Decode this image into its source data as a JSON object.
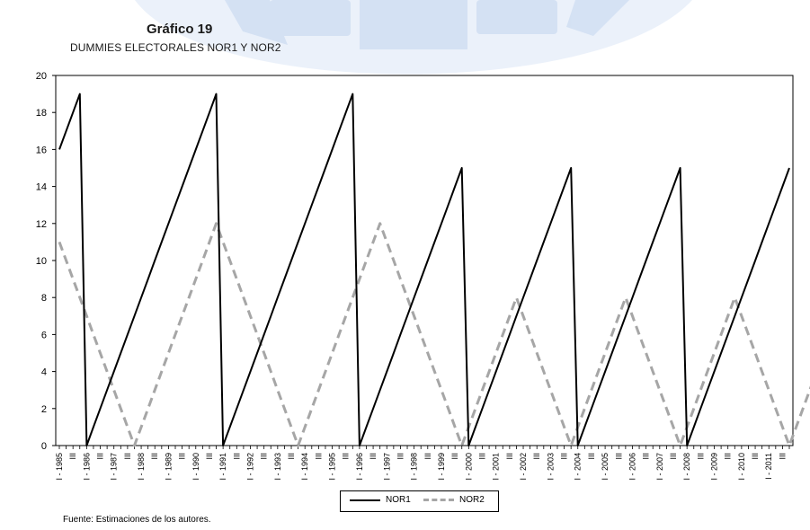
{
  "title": "Gráfico 19",
  "subtitle": "DUMMIES  ELECTORALES NOR1 Y NOR2",
  "footer": "Fuente: Estimaciones de los autores.",
  "colors": {
    "nor1": "#000000",
    "nor2": "#a6a6a6",
    "watermark": "#dbe6f5"
  },
  "chart_data": {
    "type": "line",
    "title": "Gráfico 19",
    "subtitle": "DUMMIES  ELECTORALES NOR1 Y NOR2",
    "ylim": [
      0,
      20
    ],
    "yticks": [
      0,
      2,
      4,
      6,
      8,
      10,
      12,
      14,
      16,
      18,
      20
    ],
    "x_start_year": 1985,
    "x_end_year": 2011,
    "quarters_per_year": 4,
    "x_tick_labels": [
      "I - 1985",
      "III",
      "I - 1986",
      "III",
      "I - 1987",
      "III",
      "I - 1988",
      "III",
      "I - 1989",
      "III",
      "I - 1990",
      "III",
      "I - 1991",
      "III",
      "I - 1992",
      "III",
      "I - 1993",
      "III",
      "I - 1994",
      "III",
      "I - 1995",
      "III",
      "I - 1996",
      "III",
      "I - 1997",
      "III",
      "I - 1998",
      "III",
      "I - 1999",
      "III",
      "I - 2000",
      "III",
      "I - 2001",
      "III",
      "I - 2002",
      "III",
      "I - 2003",
      "III",
      "I - 2004",
      "III",
      "I - 2005",
      "III",
      "I - 2006",
      "III",
      "I - 2007",
      "III",
      "I - 2008",
      "III",
      "I - 2009",
      "III",
      "I - 2010",
      "III",
      "I - 2011",
      "III"
    ],
    "grid": false,
    "legend_position": "bottom-center",
    "series": [
      {
        "name": "NOR1",
        "style": "solid",
        "values": [
          16,
          17,
          18,
          19,
          0,
          1,
          2,
          3,
          4,
          5,
          6,
          7,
          8,
          9,
          10,
          11,
          12,
          13,
          14,
          15,
          16,
          17,
          18,
          19,
          0,
          1,
          2,
          3,
          4,
          5,
          6,
          7,
          8,
          9,
          10,
          11,
          12,
          13,
          14,
          15,
          16,
          17,
          18,
          19,
          0,
          1,
          2,
          3,
          4,
          5,
          6,
          7,
          8,
          9,
          10,
          11,
          12,
          13,
          14,
          15,
          0,
          1,
          2,
          3,
          4,
          5,
          6,
          7,
          8,
          9,
          10,
          11,
          12,
          13,
          14,
          15,
          0,
          1,
          2,
          3,
          4,
          5,
          6,
          7,
          8,
          9,
          10,
          11,
          12,
          13,
          14,
          15,
          0,
          1,
          2,
          3,
          4,
          5,
          6,
          7,
          8,
          9,
          10,
          11,
          12,
          13,
          14,
          15
        ]
      },
      {
        "name": "NOR2",
        "style": "dashed",
        "values": [
          11,
          10,
          9,
          8,
          7,
          6,
          5,
          4,
          3,
          2,
          1,
          0,
          1,
          2,
          3,
          4,
          5,
          6,
          7,
          8,
          9,
          10,
          11,
          12,
          11,
          10,
          9,
          8,
          7,
          6,
          5,
          4,
          3,
          2,
          1,
          0,
          1,
          2,
          3,
          4,
          5,
          6,
          7,
          8,
          9,
          10,
          11,
          12,
          11,
          10,
          9,
          8,
          7,
          6,
          5,
          4,
          3,
          2,
          1,
          0,
          1,
          2,
          3,
          4,
          5,
          6,
          7,
          8,
          7,
          6,
          5,
          4,
          3,
          2,
          1,
          0,
          1,
          2,
          3,
          4,
          5,
          6,
          7,
          8,
          7,
          6,
          5,
          4,
          3,
          2,
          1,
          0,
          1,
          2,
          3,
          4,
          5,
          6,
          7,
          8,
          7,
          6,
          5,
          4,
          3,
          2,
          1,
          0,
          1,
          2,
          3,
          4,
          5,
          6,
          7,
          8
        ]
      }
    ]
  }
}
